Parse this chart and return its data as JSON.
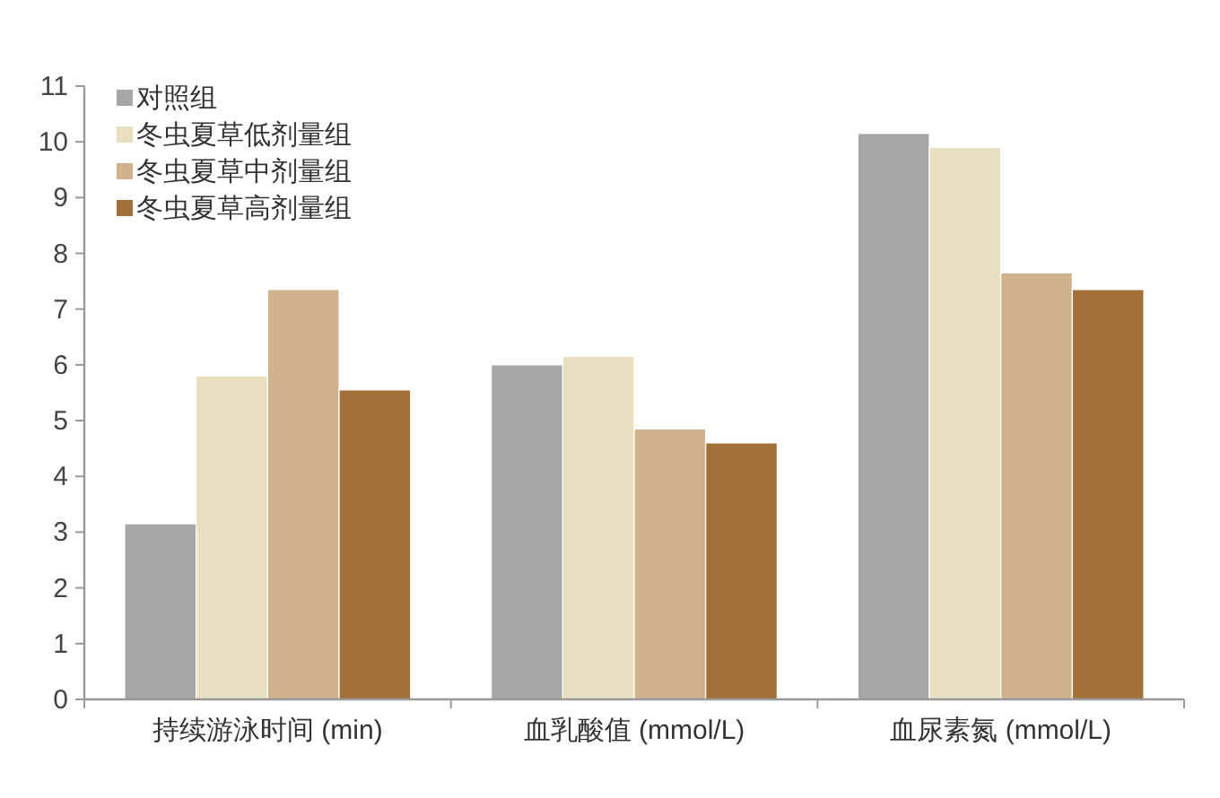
{
  "chart_data": {
    "type": "bar",
    "categories": [
      "持续游泳时间 (min)",
      "血乳酸值 (mmol/L)",
      "血尿素氮 (mmol/L)"
    ],
    "series": [
      {
        "name": "对照组",
        "color": "#a6a6a6",
        "values": [
          3.15,
          6.0,
          10.15
        ]
      },
      {
        "name": "冬虫夏草低剂量组",
        "color": "#e8dfc0",
        "values": [
          5.8,
          6.15,
          9.9
        ]
      },
      {
        "name": "冬虫夏草中剂量组",
        "color": "#d0b38c",
        "values": [
          7.35,
          4.85,
          7.65
        ]
      },
      {
        "name": "冬虫夏草高剂量组",
        "color": "#a27038",
        "values": [
          5.55,
          4.6,
          7.35
        ]
      }
    ],
    "ylim": [
      0,
      11
    ],
    "yticks": [
      0,
      1,
      2,
      3,
      4,
      5,
      6,
      7,
      8,
      9,
      10,
      11
    ],
    "grid": false,
    "legend": "top left"
  }
}
